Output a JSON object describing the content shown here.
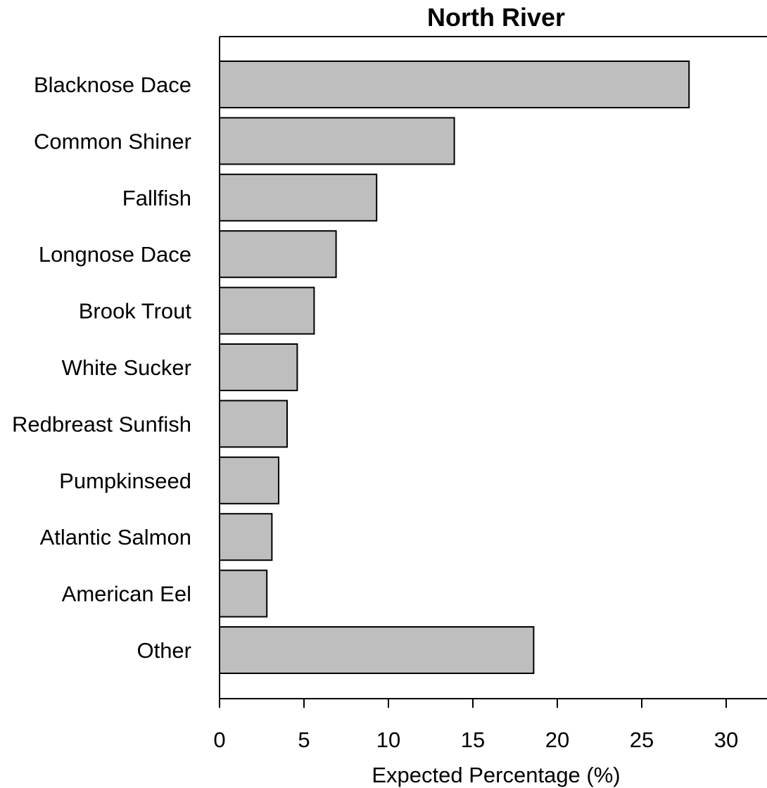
{
  "chart_data": {
    "type": "bar",
    "orientation": "horizontal",
    "title": "North River",
    "xlabel": "Expected Percentage (%)",
    "ylabel": "",
    "categories": [
      "Blacknose Dace",
      "Common Shiner",
      "Fallfish",
      "Longnose Dace",
      "Brook Trout",
      "White Sucker",
      "Redbreast Sunfish",
      "Pumpkinseed",
      "Atlantic Salmon",
      "American Eel",
      "Other"
    ],
    "values": [
      27.8,
      13.9,
      9.3,
      6.9,
      5.6,
      4.6,
      4.0,
      3.5,
      3.1,
      2.8,
      18.6
    ],
    "xlim": [
      0,
      32.4
    ],
    "xticks": [
      "0",
      "5",
      "10",
      "15",
      "20",
      "25",
      "30"
    ],
    "grid": false,
    "legend": "none",
    "colors": {
      "bar_fill": "#bebebe",
      "bar_stroke": "#000000",
      "axis": "#000000",
      "background": "#ffffff"
    }
  }
}
